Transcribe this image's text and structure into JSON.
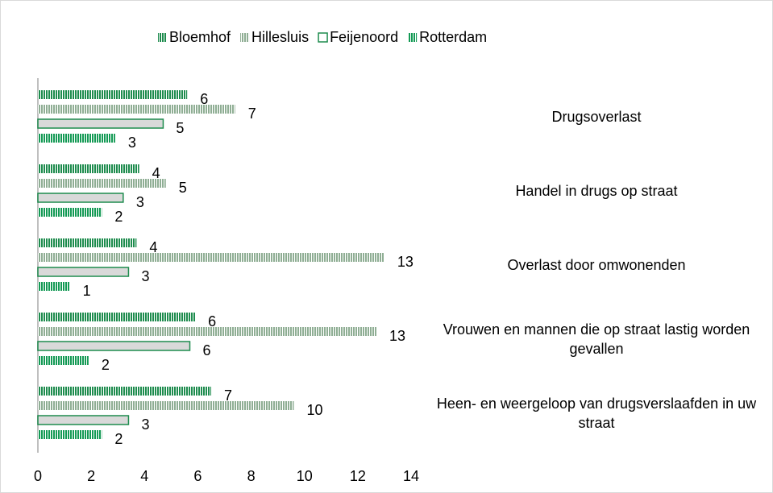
{
  "chart_data": {
    "type": "barh",
    "categories": [
      "Drugsoverlast",
      "Handel in drugs op straat",
      "Overlast door omwonenden",
      "Vrouwen en mannen die op straat lastig worden gevallen",
      "Heen- en weergeloop van drugsverslaafden in uw straat"
    ],
    "series": [
      {
        "name": "Bloemhof",
        "color": "#1e8c4e",
        "pattern": "stripes",
        "values": [
          5.6,
          3.8,
          3.7,
          5.9,
          6.5
        ],
        "value_labels": [
          "6",
          "4",
          "4",
          "6",
          "7"
        ]
      },
      {
        "name": "Hillesluis",
        "color": "#8fae94",
        "pattern": "stripes",
        "values": [
          7.4,
          4.8,
          13.0,
          12.7,
          9.6
        ],
        "value_labels": [
          "7",
          "5",
          "13",
          "13",
          "10"
        ]
      },
      {
        "name": "Feijenoord",
        "color": "#1e8c4e",
        "pattern": "outline",
        "values": [
          4.7,
          3.2,
          3.4,
          5.7,
          3.4
        ],
        "value_labels": [
          "5",
          "3",
          "3",
          "6",
          "3"
        ]
      },
      {
        "name": "Rotterdam",
        "color": "#149a55",
        "pattern": "stripes",
        "values": [
          2.9,
          2.4,
          1.2,
          1.9,
          2.4
        ],
        "value_labels": [
          "3",
          "2",
          "1",
          "2",
          "2"
        ]
      }
    ],
    "xlim": [
      0,
      14
    ],
    "xticks": [
      0,
      2,
      4,
      6,
      8,
      10,
      12,
      14
    ],
    "legend": "top"
  }
}
